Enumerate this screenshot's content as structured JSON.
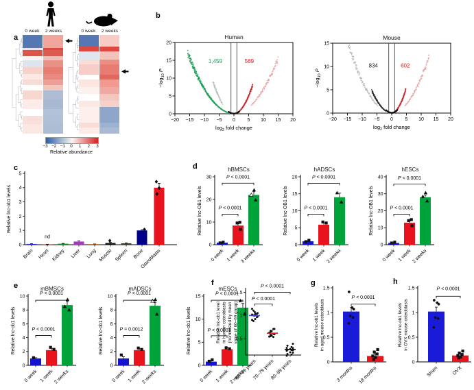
{
  "panels": {
    "a": "a",
    "b": "b",
    "c": "c",
    "d": "d",
    "e": "e",
    "f": "f",
    "g": "g",
    "h": "h"
  },
  "panel_a": {
    "human_header": [
      "0 week",
      "2 weeks"
    ],
    "mouse_header": [
      "0 week",
      "2 weeks"
    ],
    "colorbar": {
      "ticks": [
        "−3",
        "−2",
        "−1",
        "0",
        "1",
        "2",
        "3"
      ],
      "label": "Relative abundance"
    },
    "icons": {
      "human": "human-icon",
      "mouse": "mouse-icon"
    }
  },
  "chart_data": [
    {
      "id": "heatmap_human",
      "type": "heatmap",
      "species": "human",
      "arrow_frac": 0.06,
      "bands": [
        [
          0.13,
          "#5578b4",
          "#f0a59c"
        ],
        [
          0.025,
          "#ece4ea",
          "#d84b42"
        ],
        [
          0.06,
          "#dd544a",
          "#dd5a50"
        ],
        [
          0.045,
          "#fdf4f1",
          "#f2bfb8"
        ],
        [
          0.07,
          "#dde4ee",
          "#ea9187"
        ],
        [
          0.065,
          "#f6d2cb",
          "#e87d72"
        ],
        [
          0.06,
          "#fce9e5",
          "#e98a80"
        ],
        [
          0.055,
          "#f8dcd5",
          "#ef9e95"
        ],
        [
          0.05,
          "#ffffff",
          "#f3c4bc"
        ],
        [
          0.09,
          "#f6d8d1",
          "#aebdd4"
        ],
        [
          0.1,
          "#fcebe8",
          "#a9b9d2"
        ],
        [
          0.07,
          "#ffffff",
          "#b3c2d8"
        ],
        [
          0.08,
          "#f8dfd9",
          "#b0c0d6"
        ],
        [
          0.1,
          "#fbe8e3",
          "#aebdd4"
        ]
      ]
    },
    {
      "id": "heatmap_mouse",
      "type": "heatmap",
      "species": "mouse",
      "arrow_frac": 0.37,
      "bands": [
        [
          0.12,
          "#5578b4",
          "#f6ccc5"
        ],
        [
          0.05,
          "#dd4840",
          "#dd4840"
        ],
        [
          0.08,
          "#dfe6ef",
          "#f3c2bb"
        ],
        [
          0.05,
          "#f9ddd7",
          "#ec8e84"
        ],
        [
          0.1,
          "#f6cec7",
          "#e87c72"
        ],
        [
          0.05,
          "#ffffff",
          "#e3675d"
        ],
        [
          0.08,
          "#fbe6e1",
          "#ef9b91"
        ],
        [
          0.07,
          "#fdf1ee",
          "#f0a9a0"
        ],
        [
          0.07,
          "#ffffff",
          "#f4c7c0"
        ],
        [
          0.06,
          "#fbe8e3",
          "#f6d1ca"
        ],
        [
          0.16,
          "#fdefeb",
          "#8fa6c8"
        ],
        [
          0.05,
          "#f8dcd5",
          "#9db2d0"
        ],
        [
          0.06,
          "#fcebe6",
          "#a9bad3"
        ]
      ]
    },
    {
      "id": "volcano_human",
      "type": "volcano",
      "title": "Human",
      "ylabel": {
        "base": "-log",
        "sub": "10",
        "tail": " P"
      },
      "xlabel": {
        "base": "log",
        "sub": "2",
        "tail": " fold change"
      },
      "xlim": [
        -20,
        20
      ],
      "xticks": [
        -20,
        -15,
        -10,
        -5,
        0,
        5,
        10,
        15,
        20
      ],
      "ylim": [
        0,
        20
      ],
      "yticks": [
        0,
        5,
        10,
        15,
        20
      ],
      "vlines": [
        -1,
        1
      ],
      "counts": [
        {
          "text": "1,459",
          "color": "#1f9d55",
          "x": -6.3,
          "y": 14.2
        },
        {
          "text": "569",
          "color": "#e8131d",
          "x": 5.2,
          "y": 14.2
        }
      ],
      "branches": [
        {
          "x0": -1.7,
          "x1": -15.6,
          "k": 0.069,
          "color": "#1f9d55",
          "n": 300,
          "o": 0.9
        },
        {
          "x0": -3.9,
          "x1": -7.1,
          "k": 0.18,
          "color": "#b9beb9",
          "n": 70,
          "o": 0.8
        },
        {
          "x0": 1.0,
          "x1": 6.3,
          "k": 0.2,
          "color": "#c9242b",
          "n": 170,
          "o": 0.9
        },
        {
          "x0": 5.8,
          "x1": 14.9,
          "k": 0.068,
          "color": "#e3a5a2",
          "n": 110,
          "o": 0.85
        },
        {
          "x0": -1.8,
          "x1": 1.8,
          "k": 0.16,
          "color": "#1a1a1a",
          "n": 220,
          "o": 0.9
        }
      ]
    },
    {
      "id": "volcano_mouse",
      "type": "volcano",
      "title": "Mouse",
      "ylabel": {
        "base": "-log",
        "sub": "10",
        "tail": " P"
      },
      "xlabel": {
        "base": "log",
        "sub": "2",
        "tail": " fold change"
      },
      "xlim": [
        -20,
        20
      ],
      "xticks": [
        -20,
        -15,
        -10,
        -5,
        0,
        5,
        10,
        15,
        20
      ],
      "ylim": [
        0,
        15
      ],
      "yticks": [
        0,
        5,
        10,
        15
      ],
      "vlines": [
        -1,
        1
      ],
      "counts": [
        {
          "text": "834",
          "color": "#222222",
          "x": -6.2,
          "y": 9.8
        },
        {
          "text": "602",
          "color": "#e8131d",
          "x": 4.6,
          "y": 9.8
        }
      ],
      "branches": [
        {
          "x0": -1.9,
          "x1": -6.7,
          "k": 0.105,
          "color": "#2b2b2b",
          "n": 120,
          "o": 0.9
        },
        {
          "x0": -4.8,
          "x1": -14.7,
          "k": 0.068,
          "color": "#b5b5b5",
          "n": 110,
          "o": 0.85
        },
        {
          "x0": 1.0,
          "x1": 4.7,
          "k": 0.22,
          "color": "#c9242b",
          "n": 140,
          "o": 0.95
        },
        {
          "x0": 4.4,
          "x1": 12.7,
          "k": 0.075,
          "color": "#dfa3a0",
          "n": 100,
          "o": 0.85
        },
        {
          "x0": -1.9,
          "x1": 1.9,
          "k": 0.16,
          "color": "#111111",
          "n": 220,
          "o": 0.9
        }
      ]
    },
    {
      "id": "tissue",
      "type": "bar",
      "title": "",
      "ylabel": "Relative lnc-ob1 levels",
      "categories": [
        "Brain",
        "Heart",
        "Kidney",
        "Liver",
        "Lung",
        "Muscle",
        "Spleen",
        "Bone",
        "Osteoblasts"
      ],
      "values": [
        0.05,
        0.02,
        0.07,
        0.22,
        0.04,
        0.12,
        0.1,
        1.0,
        4.0
      ],
      "errors": [
        0.02,
        0.01,
        0.02,
        0.05,
        0.01,
        0.05,
        0.03,
        0.05,
        0.3
      ],
      "colors": [
        "#2c2cd1",
        "#c42828",
        "#1e8c2a",
        "#a33bbd",
        "#b5651d",
        "#141414",
        "#3d3d30",
        "#00008b",
        "#e8131d"
      ],
      "ylim": [
        0,
        5
      ],
      "yticks": [
        0,
        1,
        2,
        3,
        4,
        5
      ],
      "points": [
        {
          "cat": 5,
          "marker": "diamond",
          "values": [
            0.28
          ]
        },
        {
          "cat": 7,
          "marker": "diamond",
          "values": [
            1.07
          ]
        },
        {
          "cat": 8,
          "marker": "diamond",
          "values": [
            4.42,
            3.98,
            3.56
          ]
        }
      ],
      "extra_labels": [
        {
          "text": "nd",
          "cat": 1,
          "y": 0.45
        }
      ],
      "annotations": []
    },
    {
      "id": "hBMSCs",
      "type": "bar",
      "title": "hBMSCs",
      "ylabel": "Relative lnc-OB1 levels",
      "categories": [
        "0 week",
        "1 week",
        "3 weeks"
      ],
      "values": [
        0.9,
        8.5,
        22
      ],
      "errors": [
        0.15,
        0.7,
        1.4
      ],
      "colors": [
        "#1414cc",
        "#e8131d",
        "#00a339"
      ],
      "ylim": [
        0,
        30
      ],
      "yticks": [
        0,
        10,
        20,
        30
      ],
      "points": [
        {
          "cat": 0,
          "marker": "square",
          "values": [
            0.8,
            1.1
          ]
        },
        {
          "cat": 1,
          "marker": "square",
          "values": [
            6.8,
            9.6,
            9.9
          ]
        },
        {
          "cat": 2,
          "marker": "triangle",
          "values": [
            19.8,
            {
              "v": 22.0,
              "open": true
            },
            24.2
          ]
        }
      ],
      "annotations": [
        {
          "text": "P < 0.0001",
          "from": 0,
          "to": 1,
          "bar_y": 13.5,
          "text_y": 15.6
        },
        {
          "text": "P < 0.0001",
          "from": 0,
          "to": 2,
          "bar_y": 27.2,
          "text_y": 29.2
        }
      ]
    },
    {
      "id": "hADSCs",
      "type": "bar",
      "title": "hADSCs",
      "ylabel": "Relative lnc-OB1 levels",
      "categories": [
        "0 week",
        "1 week",
        "2 weeks"
      ],
      "values": [
        1.0,
        5.9,
        14.0
      ],
      "errors": [
        0.12,
        0.5,
        1.2
      ],
      "colors": [
        "#1414cc",
        "#e8131d",
        "#00a339"
      ],
      "ylim": [
        0,
        20
      ],
      "yticks": [
        0,
        5,
        10,
        15,
        20
      ],
      "points": [
        {
          "cat": 0,
          "marker": "square",
          "values": [
            0.9,
            1.3
          ]
        },
        {
          "cat": 1,
          "marker": "square",
          "values": [
            6.4,
            6.7
          ]
        },
        {
          "cat": 2,
          "marker": "triangle",
          "values": [
            12.6,
            15.3
          ]
        }
      ],
      "annotations": [
        {
          "text": "P < 0.0001",
          "from": 0,
          "to": 1,
          "bar_y": 9.0,
          "text_y": 10.4
        },
        {
          "text": "P < 0.0001",
          "from": 0,
          "to": 2,
          "bar_y": 18.1,
          "text_y": 19.5
        }
      ]
    },
    {
      "id": "hESCs",
      "type": "bar",
      "title": "hESCs",
      "ylabel": "Relative lnc-OB1 levels",
      "categories": [
        "0 week",
        "1 week",
        "2 weeks"
      ],
      "values": [
        1.0,
        13,
        28
      ],
      "errors": [
        0.2,
        1.0,
        1.3
      ],
      "colors": [
        "#1414cc",
        "#e8131d",
        "#00a339"
      ],
      "ylim": [
        0,
        40
      ],
      "yticks": [
        0,
        10,
        20,
        30,
        40
      ],
      "points": [
        {
          "cat": 0,
          "marker": "square",
          "values": [
            1.0,
            1.5
          ]
        },
        {
          "cat": 1,
          "marker": "square",
          "values": [
            11.2,
            14.2,
            14.8
          ]
        },
        {
          "cat": 2,
          "marker": "triangle",
          "values": [
            25.8,
            28.4,
            30.6
          ]
        }
      ],
      "annotations": [
        {
          "text": "P < 0.0001",
          "from": 0,
          "to": 1,
          "bar_y": 18.0,
          "text_y": 20.8
        },
        {
          "text": "P < 0.0001",
          "from": 0,
          "to": 2,
          "bar_y": 35.8,
          "text_y": 38.4
        }
      ]
    },
    {
      "id": "mBMSCs",
      "type": "bar",
      "title": "mBMSCs",
      "ylabel": "Relative lnc-ob1 levels",
      "categories": [
        "0 week",
        "1 week",
        "2 weeks"
      ],
      "values": [
        1.0,
        2.2,
        8.7
      ],
      "errors": [
        0.1,
        0.25,
        0.5
      ],
      "colors": [
        "#1414cc",
        "#e8131d",
        "#00a339"
      ],
      "ylim": [
        0,
        10
      ],
      "yticks": [
        0,
        2,
        4,
        6,
        8,
        10
      ],
      "points": [
        {
          "cat": 0,
          "marker": "square",
          "values": [
            1.1
          ]
        },
        {
          "cat": 1,
          "marker": "square",
          "values": [
            2.3,
            2.6
          ]
        },
        {
          "cat": 2,
          "marker": "triangle",
          "values": [
            8.0,
            8.5,
            9.5
          ]
        }
      ],
      "annotations": [
        {
          "text": "P < 0.0001",
          "from": 0,
          "to": 1,
          "bar_y": 4.3,
          "text_y": 5.0
        },
        {
          "text": "P < 0.0001",
          "from": 0,
          "to": 2,
          "bar_y": 9.4,
          "text_y": 10.2
        }
      ]
    },
    {
      "id": "mADSCs",
      "type": "bar",
      "title": "mADSCs",
      "ylabel": "Relative lnc-ob1 levels",
      "categories": [
        "0 week",
        "1 week",
        "2 weeks"
      ],
      "values": [
        1.0,
        2.2,
        8.6
      ],
      "errors": [
        0.25,
        0.2,
        0.45
      ],
      "colors": [
        "#1414cc",
        "#e8131d",
        "#00a339"
      ],
      "ylim": [
        0,
        10
      ],
      "yticks": [
        0,
        2,
        4,
        6,
        8,
        10
      ],
      "points": [
        {
          "cat": 0,
          "marker": "square",
          "values": [
            1.5
          ]
        },
        {
          "cat": 1,
          "marker": "square",
          "values": [
            2.3,
            2.5
          ]
        },
        {
          "cat": 2,
          "marker": "triangle",
          "values": [
            7.4,
            {
              "v": 9.3,
              "open": true
            },
            9.5
          ]
        }
      ],
      "annotations": [
        {
          "text": "P = 0.0012",
          "from": 0,
          "to": 1,
          "bar_y": 4.3,
          "text_y": 5.0
        },
        {
          "text": "P < 0.0001",
          "from": 0,
          "to": 2,
          "bar_y": 9.4,
          "text_y": 10.2
        }
      ]
    },
    {
      "id": "mESCs",
      "type": "bar",
      "title": "mESCs",
      "ylabel": "Relative lnc-ob1 levels",
      "categories": [
        "0 week",
        "1 week",
        "2 weeks"
      ],
      "values": [
        0.8,
        3.5,
        12.5
      ],
      "errors": [
        0.15,
        0.3,
        0.9
      ],
      "colors": [
        "#1414cc",
        "#e8131d",
        "#00a339"
      ],
      "ylim": [
        0,
        15
      ],
      "yticks": [
        0,
        5,
        10,
        15
      ],
      "points": [
        {
          "cat": 0,
          "marker": "square",
          "values": [
            0.9,
            1.2
          ]
        },
        {
          "cat": 1,
          "marker": "square",
          "values": [
            3.6,
            3.8
          ]
        },
        {
          "cat": 2,
          "marker": "triangle",
          "values": [
            11.2,
            14.0
          ]
        }
      ],
      "annotations": [
        {
          "text": "P < 0.0001",
          "from": 0,
          "to": 1,
          "bar_y": 6.4,
          "text_y": 7.3
        },
        {
          "text": "P < 0.0001",
          "from": 0,
          "to": 2,
          "bar_y": 14.1,
          "text_y": 15.2
        }
      ]
    },
    {
      "id": "age_dotplot",
      "type": "dotplot",
      "ylabel_lines": [
        "Relative lnc-ob1 level",
        "in human osteoblasts",
        "(normalized by mean",
        "value of 60–69 group)"
      ],
      "categories": [
        "60–69 years",
        "70–79 years",
        "80–89 years"
      ],
      "means": [
        1.0,
        0.62,
        0.27
      ],
      "mean_colors": [
        "#4444dd",
        "#d42222",
        "#111111"
      ],
      "groups": [
        [
          1.13,
          1.1,
          1.08,
          1.06,
          1.05,
          1.03,
          1.02,
          1.0,
          0.99,
          0.97,
          0.95,
          0.93,
          0.9,
          0.88
        ],
        [
          0.72,
          0.7,
          0.68,
          0.67,
          0.65,
          0.63,
          0.62,
          0.61,
          0.6,
          0.58,
          0.56,
          0.55,
          0.53
        ],
        [
          0.38,
          0.35,
          0.33,
          0.31,
          0.3,
          0.29,
          0.28,
          0.27,
          0.26,
          0.25,
          0.24,
          0.22,
          0.2,
          0.18,
          0.15,
          0.12
        ]
      ],
      "ylim": [
        0.15,
        1.55
      ],
      "yticks": [
        0.5,
        1.0,
        1.5
      ],
      "annotations": [
        {
          "text": "P < 0.0001",
          "from": 0,
          "to": 1,
          "bar_y": 1.25,
          "text_y": 1.33
        },
        {
          "text": "P < 0.0001",
          "from": 0,
          "to": 2,
          "bar_y": 1.5,
          "text_y": 1.6
        }
      ]
    },
    {
      "id": "aged_mouse",
      "type": "bar",
      "title": "",
      "ylabel_lines": [
        "Relative lnc-ob1 levels",
        "in aged mouse osteoblasts"
      ],
      "categories": [
        "3 months",
        "18 months"
      ],
      "values": [
        1.02,
        0.12
      ],
      "errors": [
        0.08,
        0.04
      ],
      "colors": [
        "#1a1ad9",
        "#e8131d"
      ],
      "ylim": [
        0,
        1.5
      ],
      "yticks": [
        0.0,
        0.5,
        1.0,
        1.5
      ],
      "points": [
        {
          "cat": 0,
          "marker": "circle",
          "values": [
            1.42,
            1.1,
            1.07,
            0.93,
            0.9,
            0.78
          ]
        },
        {
          "cat": 1,
          "marker": "square",
          "values": [
            0.25,
            0.2,
            0.16,
            0.12,
            0.09,
            0.05
          ]
        }
      ],
      "annotations": [
        {
          "text": "P < 0.0001",
          "from": 0,
          "to": 1,
          "bar_y": 1.17,
          "text_y": 1.28
        }
      ]
    },
    {
      "id": "ovx_mouse",
      "type": "bar",
      "title": "",
      "ylabel_lines": [
        "Relative lnc-ob1 levels",
        "in OVX mouse osteoblasts"
      ],
      "categories": [
        "Sham",
        "OVX"
      ],
      "values": [
        1.02,
        0.13
      ],
      "errors": [
        0.09,
        0.03
      ],
      "colors": [
        "#1a1ad9",
        "#e8131d"
      ],
      "ylim": [
        0,
        1.5
      ],
      "yticks": [
        0.0,
        0.5,
        1.0,
        1.5
      ],
      "points": [
        {
          "cat": 0,
          "marker": "circle",
          "values": [
            1.25,
            1.2,
            1.17,
            0.9,
            0.88,
            0.7
          ]
        },
        {
          "cat": 1,
          "marker": "square",
          "values": [
            0.22,
            0.18,
            0.15,
            0.13,
            0.1,
            0.08
          ]
        }
      ],
      "annotations": [
        {
          "text": "P < 0.0001",
          "from": 0,
          "to": 1,
          "bar_y": 1.33,
          "text_y": 1.45
        }
      ]
    }
  ]
}
